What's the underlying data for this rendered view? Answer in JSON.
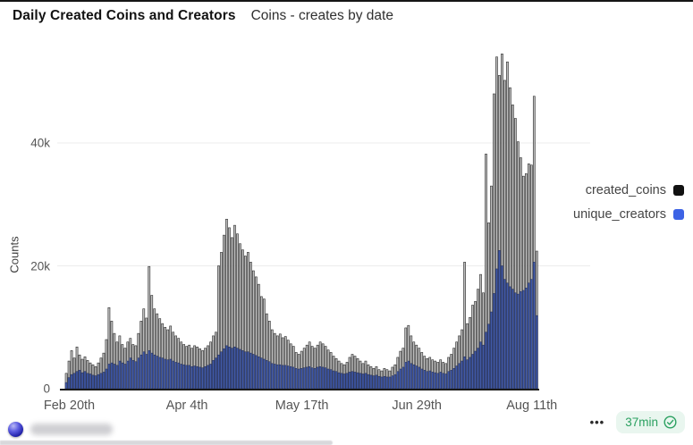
{
  "header": {
    "title": "Daily Created Coins and Creators",
    "subtitle": "Coins - creates by date"
  },
  "legend": {
    "items": [
      {
        "label": "created_coins",
        "marker_color": "#111111"
      },
      {
        "label": "unique_creators",
        "marker_color": "#3D63E5"
      }
    ]
  },
  "footer": {
    "ellipsis": "•••",
    "badge": {
      "text": "37min",
      "icon": "check-circle-icon",
      "text_color": "#2AA060",
      "bg_color": "#E9F6EF"
    },
    "watermark": {
      "icon": "sphere-icon",
      "text_blurred": true
    }
  },
  "chart_data": {
    "type": "bar",
    "overlay": true,
    "title": "Daily Created Coins and Creators",
    "subtitle": "Coins - creates by date",
    "xlabel": "",
    "ylabel": "Counts",
    "y_unit": "thousands",
    "ylim": [
      0,
      55.5
    ],
    "grid": "horizontal",
    "legend_position": "right",
    "y_ticks": [
      {
        "value": 0,
        "label": "0"
      },
      {
        "value": 20,
        "label": "20k"
      },
      {
        "value": 40,
        "label": "40k"
      }
    ],
    "x_start_label": "Feb 19",
    "x_end_label": "Aug 13",
    "x_ticks": [
      {
        "index": 1,
        "label": "Feb 20th"
      },
      {
        "index": 45,
        "label": "Apr 4th"
      },
      {
        "index": 88,
        "label": "May 17th"
      },
      {
        "index": 131,
        "label": "Jun 29th"
      },
      {
        "index": 174,
        "label": "Aug 11th"
      }
    ],
    "series": [
      {
        "name": "created_coins",
        "fill": "#BCBCBC",
        "stroke": "#1C1C1C",
        "values_k": [
          2.5,
          4.5,
          6.2,
          5.0,
          6.8,
          5.5,
          4.8,
          5.2,
          4.6,
          4.2,
          3.9,
          3.6,
          4.2,
          5.0,
          5.8,
          8.0,
          13.2,
          11.0,
          9.0,
          7.6,
          8.6,
          7.2,
          6.6,
          7.6,
          8.2,
          7.2,
          7.0,
          9.0,
          11.0,
          13.0,
          11.5,
          19.9,
          15.2,
          13.0,
          12.2,
          11.4,
          10.6,
          10.0,
          9.6,
          10.2,
          9.2,
          8.6,
          8.2,
          7.6,
          7.2,
          6.9,
          7.1,
          6.6,
          7.0,
          6.8,
          6.5,
          6.2,
          6.6,
          7.0,
          7.6,
          8.6,
          9.2,
          20.0,
          22.2,
          25.0,
          27.6,
          26.2,
          24.6,
          26.6,
          25.2,
          23.6,
          22.6,
          21.6,
          22.2,
          20.6,
          19.2,
          18.2,
          17.0,
          15.0,
          14.6,
          12.2,
          11.0,
          9.6,
          9.0,
          8.6,
          8.9,
          8.3,
          8.5,
          7.9,
          7.3,
          6.9,
          5.9,
          5.6,
          6.1,
          6.6,
          7.1,
          7.6,
          6.9,
          6.6,
          7.1,
          7.6,
          7.3,
          6.9,
          6.3,
          5.9,
          5.3,
          4.9,
          4.5,
          4.1,
          3.9,
          4.3,
          5.1,
          5.6,
          5.3,
          4.9,
          4.5,
          4.1,
          4.5,
          3.9,
          3.6,
          3.3,
          3.6,
          3.1,
          2.9,
          3.3,
          3.1,
          2.9,
          3.5,
          3.9,
          5.1,
          6.1,
          6.6,
          9.9,
          10.3,
          8.6,
          7.6,
          7.1,
          6.6,
          5.9,
          5.3,
          4.9,
          5.1,
          4.7,
          4.5,
          4.3,
          4.7,
          4.3,
          4.1,
          5.1,
          5.6,
          6.6,
          7.6,
          8.6,
          9.6,
          20.6,
          10.6,
          11.6,
          13.6,
          14.2,
          16.2,
          18.6,
          15.6,
          38.2,
          27.0,
          33.0,
          48.0,
          54.0,
          51.0,
          54.5,
          50.2,
          53.2,
          49.0,
          46.2,
          44.0,
          40.2,
          37.6,
          34.6,
          35.0,
          36.6,
          36.4,
          47.6,
          22.4
        ]
      },
      {
        "name": "unique_creators",
        "fill": "#4059A8",
        "stroke": "#232E58",
        "values_k": [
          1.0,
          1.8,
          2.3,
          2.5,
          2.8,
          3.0,
          2.6,
          2.8,
          2.5,
          2.4,
          2.2,
          2.1,
          2.3,
          2.5,
          2.7,
          3.2,
          4.0,
          4.2,
          4.0,
          3.8,
          4.5,
          4.2,
          4.0,
          4.5,
          5.0,
          4.6,
          4.4,
          5.0,
          5.5,
          6.0,
          5.6,
          6.2,
          5.8,
          5.5,
          5.3,
          5.1,
          5.0,
          4.8,
          4.7,
          4.8,
          4.5,
          4.3,
          4.2,
          4.0,
          3.9,
          3.8,
          3.8,
          3.6,
          3.7,
          3.6,
          3.5,
          3.4,
          3.6,
          3.8,
          4.0,
          4.6,
          5.0,
          5.5,
          6.0,
          6.5,
          7.0,
          6.8,
          6.6,
          6.8,
          6.6,
          6.4,
          6.2,
          6.0,
          6.0,
          5.8,
          5.6,
          5.4,
          5.2,
          5.0,
          4.8,
          4.6,
          4.4,
          4.1,
          4.0,
          3.9,
          3.9,
          3.8,
          3.8,
          3.7,
          3.6,
          3.5,
          3.3,
          3.2,
          3.3,
          3.4,
          3.5,
          3.6,
          3.4,
          3.3,
          3.5,
          3.6,
          3.5,
          3.4,
          3.2,
          3.1,
          2.9,
          2.8,
          2.6,
          2.5,
          2.4,
          2.5,
          2.7,
          2.8,
          2.7,
          2.6,
          2.5,
          2.4,
          2.5,
          2.3,
          2.2,
          2.1,
          2.2,
          2.0,
          1.9,
          2.0,
          1.9,
          1.9,
          2.1,
          2.3,
          2.8,
          3.2,
          3.5,
          4.3,
          4.5,
          4.1,
          3.9,
          3.7,
          3.5,
          3.2,
          3.0,
          2.8,
          2.9,
          2.7,
          2.6,
          2.5,
          2.7,
          2.5,
          2.4,
          2.8,
          3.0,
          3.3,
          3.7,
          4.1,
          4.5,
          5.2,
          4.7,
          5.1,
          5.6,
          6.1,
          6.6,
          7.6,
          7.1,
          9.2,
          10.5,
          12.5,
          15.5,
          19.5,
          22.5,
          20.0,
          17.8,
          17.2,
          16.6,
          16.2,
          15.6,
          15.4,
          15.8,
          16.0,
          16.4,
          17.2,
          17.8,
          20.6,
          11.9
        ]
      }
    ]
  }
}
